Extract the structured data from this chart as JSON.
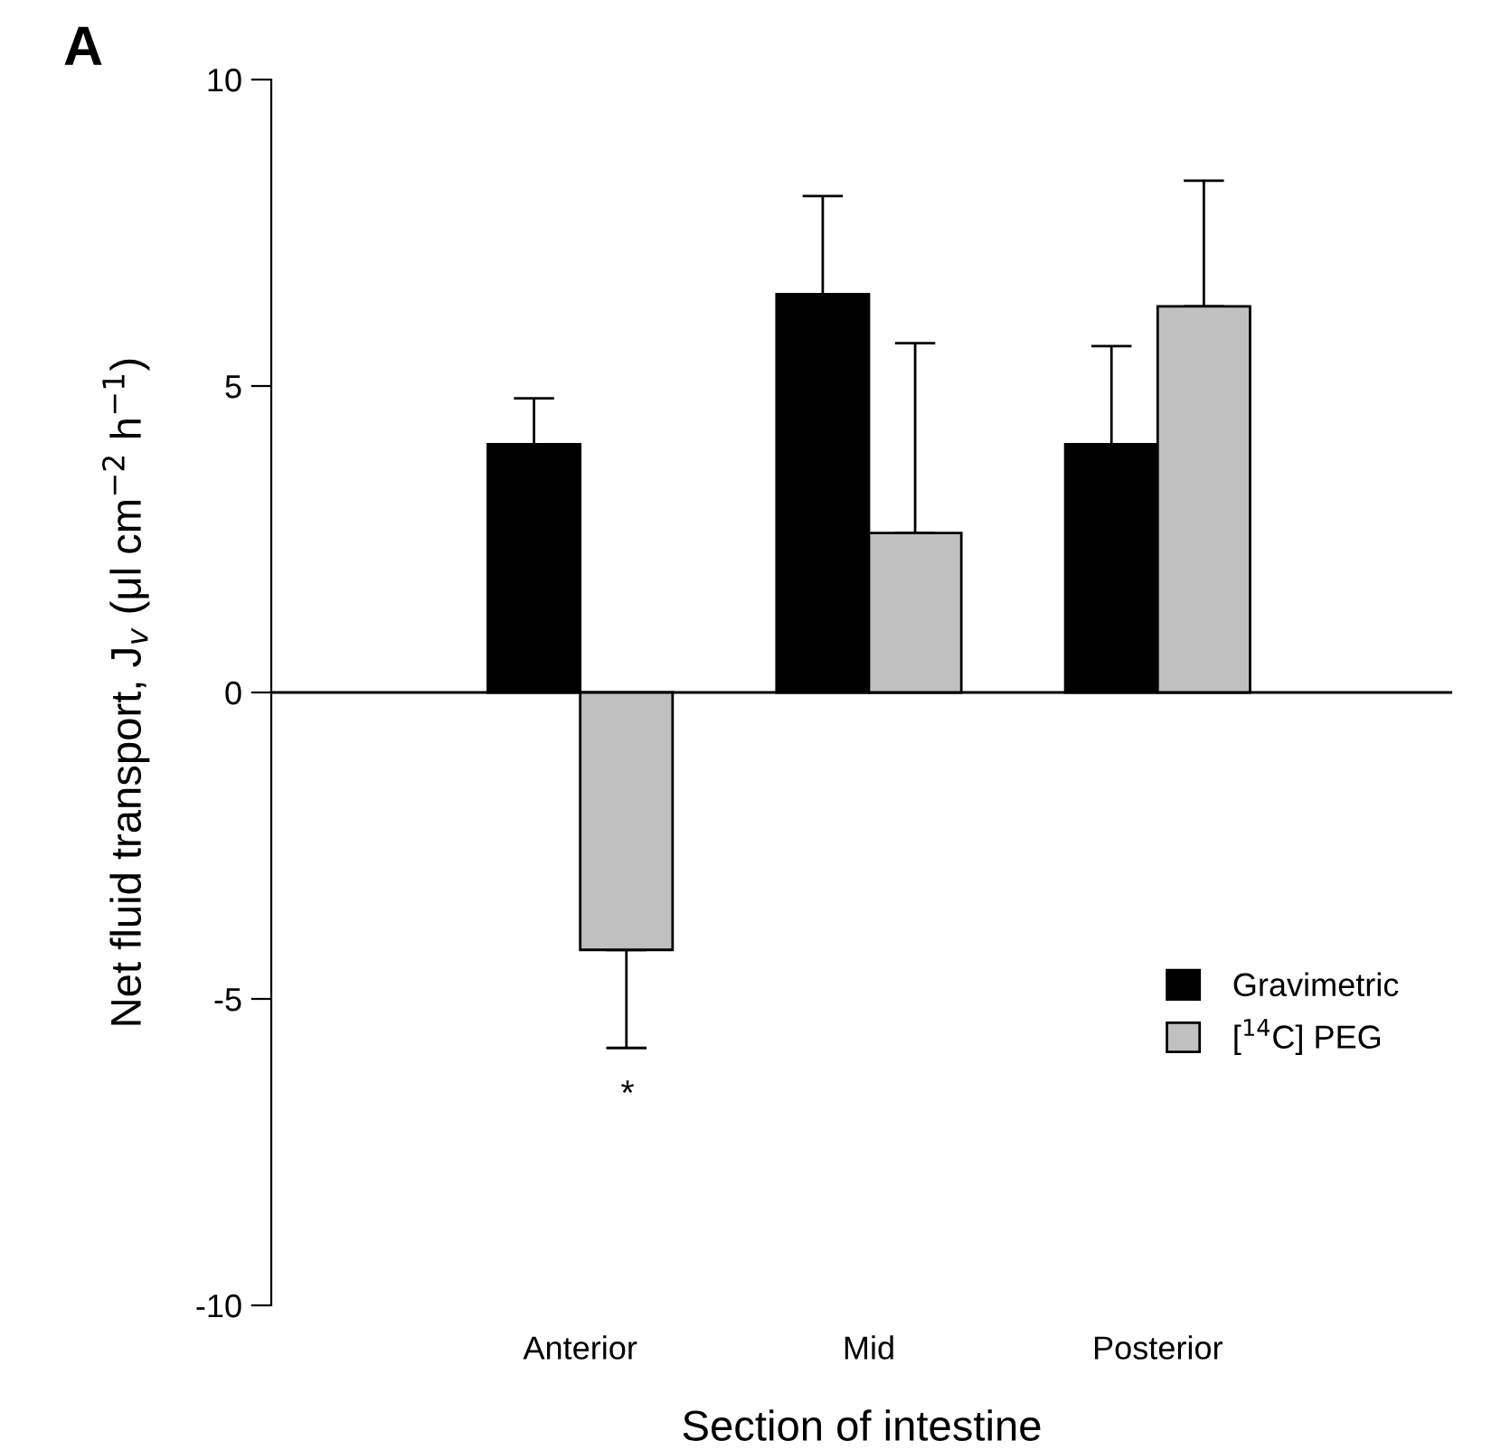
{
  "chart_data": {
    "type": "bar",
    "xlabel": "Section of intestine",
    "ylabel": "Net fluid transport, J$_{v}$ (μl cm$^{−2}$ h$^{−1}$)",
    "categories": [
      "Anterior",
      "Mid",
      "Posterior"
    ],
    "series": [
      {
        "name": "Gravimetric",
        "color": "#000000",
        "values": [
          4.05,
          6.5,
          4.05
        ],
        "errors": [
          [
            4.05,
            4.8
          ],
          [
            6.5,
            8.1
          ],
          [
            4.05,
            5.65
          ]
        ]
      },
      {
        "name": "[$^{14}$C] PEG",
        "color": "#c0c0c0",
        "values": [
          -4.2,
          2.6,
          6.3
        ],
        "errors": [
          [
            -5.8,
            -4.2
          ],
          [
            2.6,
            5.7
          ],
          [
            6.3,
            8.35
          ]
        ]
      }
    ],
    "ylim": [
      -10,
      10
    ],
    "yticks": [
      -10,
      -5,
      0,
      5,
      10
    ],
    "legend": "bottom right",
    "ref_lines": [
      {
        "axis": "y",
        "value": 0
      }
    ],
    "annotations": [
      "A",
      "*"
    ]
  }
}
